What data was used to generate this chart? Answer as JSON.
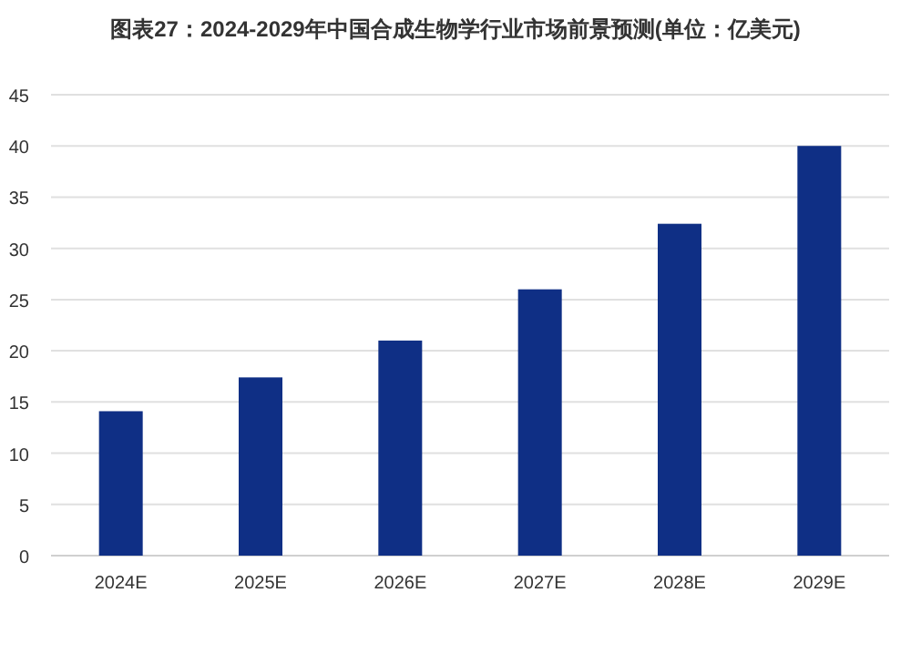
{
  "chart_data": {
    "type": "bar",
    "title": "图表27：2024-2029年中国合成生物学行业市场前景预测(单位：亿美元)",
    "categories": [
      "2024E",
      "2025E",
      "2026E",
      "2027E",
      "2028E",
      "2029E"
    ],
    "values": [
      14.1,
      17.4,
      21,
      26,
      32.4,
      40
    ],
    "color": "#0f2f85",
    "ylim": [
      0,
      45
    ],
    "yticks": [
      0,
      5,
      10,
      15,
      20,
      25,
      30,
      35,
      40,
      45
    ],
    "grid": "y"
  }
}
